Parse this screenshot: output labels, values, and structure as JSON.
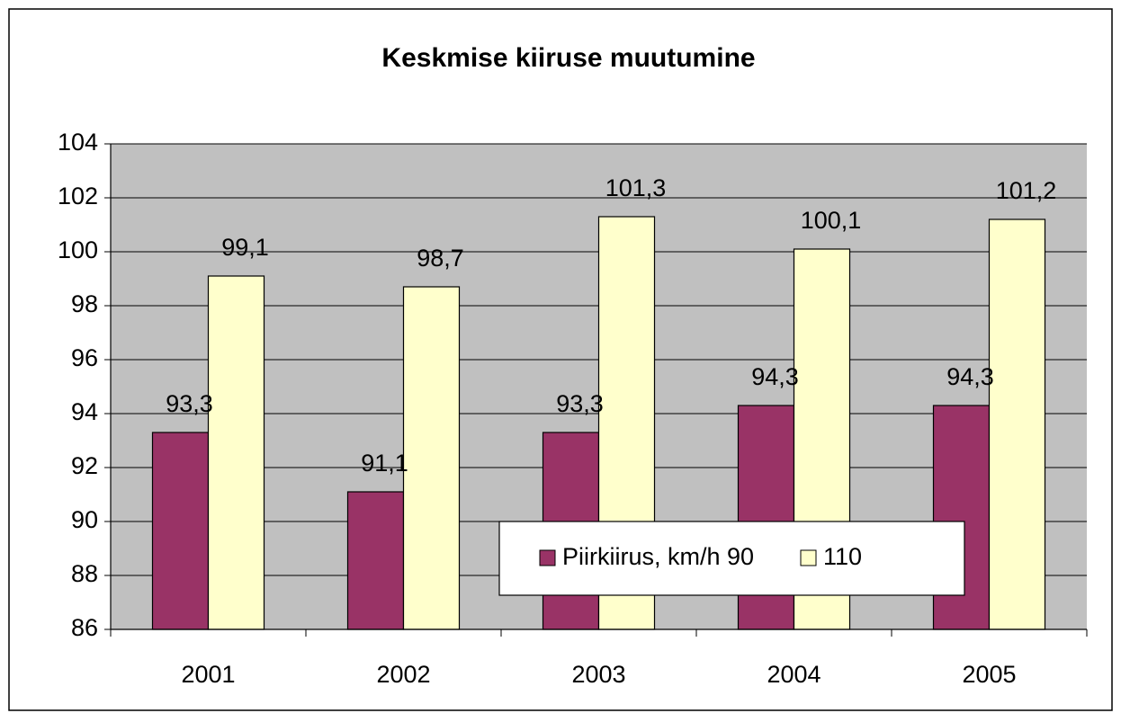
{
  "chart_data": {
    "type": "bar",
    "title": "Keskmise kiiruse muutumine",
    "categories": [
      "2001",
      "2002",
      "2003",
      "2004",
      "2005"
    ],
    "series": [
      {
        "name": "Piirkiirus, km/h 90",
        "color": "#993366",
        "values": [
          93.3,
          91.1,
          93.3,
          94.3,
          94.3
        ],
        "value_labels": [
          "93,3",
          "91,1",
          "93,3",
          "94,3",
          "94,3"
        ]
      },
      {
        "name": "110",
        "color": "#ffffcc",
        "values": [
          99.1,
          98.7,
          101.3,
          100.1,
          101.2
        ],
        "value_labels": [
          "99,1",
          "98,7",
          "101,3",
          "100,1",
          "101,2"
        ]
      }
    ],
    "ylim": [
      86,
      104
    ],
    "yticks": [
      86,
      88,
      90,
      92,
      94,
      96,
      98,
      100,
      102,
      104
    ],
    "grid": true,
    "legend": "bottom-right",
    "plot_background": "#c0c0c0"
  }
}
